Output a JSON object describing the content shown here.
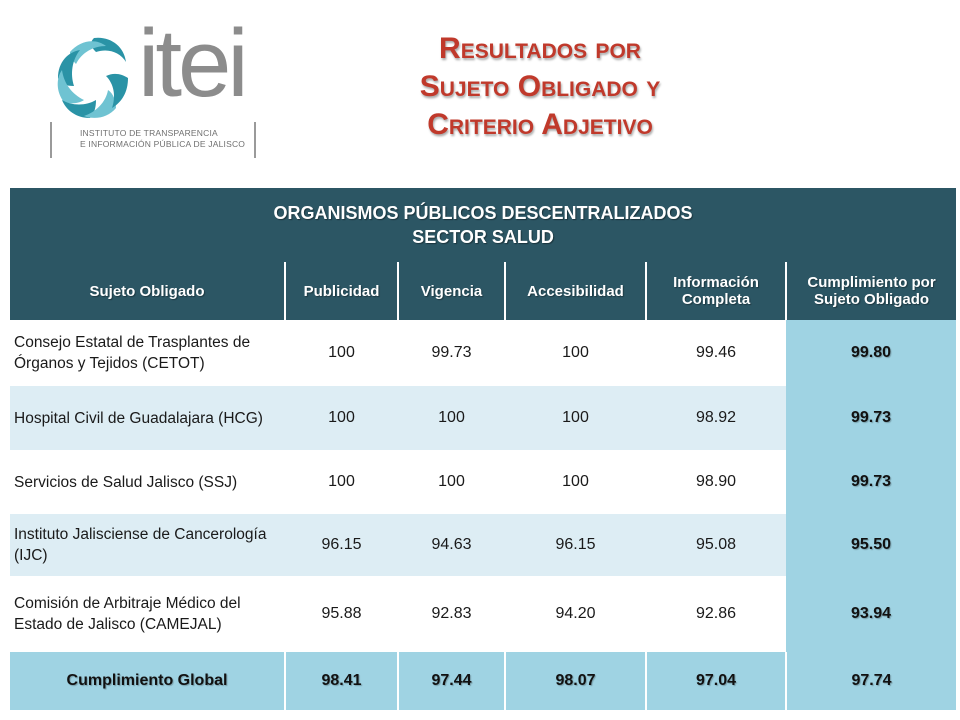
{
  "logo": {
    "word": "itei",
    "subtitle_line1": "INSTITUTO DE TRANSPARENCIA",
    "subtitle_line2": "E INFORMACIÓN PÚBLICA DE JALISCO"
  },
  "title": {
    "line1": "Resultados por",
    "line2": "Sujeto Obligado y",
    "line3": "Criterio Adjetivo"
  },
  "table": {
    "header_line1": "ORGANISMOS PÚBLICOS DESCENTRALIZADOS",
    "header_line2": "SECTOR SALUD",
    "columns": [
      "Sujeto Obligado",
      "Publicidad",
      "Vigencia",
      "Accesibilidad",
      "Información Completa",
      "Cumplimiento por Sujeto Obligado"
    ],
    "rows": [
      {
        "name": "Consejo Estatal de Trasplantes de Órganos y Tejidos (CETOT)",
        "publicidad": "100",
        "vigencia": "99.73",
        "accesibilidad": "100",
        "informacion": "99.46",
        "cumplimiento": "99.80"
      },
      {
        "name": "Hospital Civil de Guadalajara (HCG)",
        "publicidad": "100",
        "vigencia": "100",
        "accesibilidad": "100",
        "informacion": "98.92",
        "cumplimiento": "99.73"
      },
      {
        "name": "Servicios de Salud Jalisco (SSJ)",
        "publicidad": "100",
        "vigencia": "100",
        "accesibilidad": "100",
        "informacion": "98.90",
        "cumplimiento": "99.73"
      },
      {
        "name": "Instituto Jalisciense de Cancerología (IJC)",
        "publicidad": "96.15",
        "vigencia": "94.63",
        "accesibilidad": "96.15",
        "informacion": "95.08",
        "cumplimiento": "95.50"
      },
      {
        "name": "Comisión de Arbitraje Médico del Estado de Jalisco (CAMEJAL)",
        "publicidad": "95.88",
        "vigencia": "92.83",
        "accesibilidad": "94.20",
        "informacion": "92.86",
        "cumplimiento": "93.94"
      }
    ],
    "global": {
      "label": "Cumplimiento Global",
      "publicidad": "98.41",
      "vigencia": "97.44",
      "accesibilidad": "98.07",
      "informacion": "97.04",
      "cumplimiento": "97.74"
    }
  },
  "colors": {
    "header_bg": "#2c5664",
    "title_red": "#c0392b",
    "highlight_blue": "#9fd3e3",
    "row_alt_blue": "#ddedf4"
  }
}
